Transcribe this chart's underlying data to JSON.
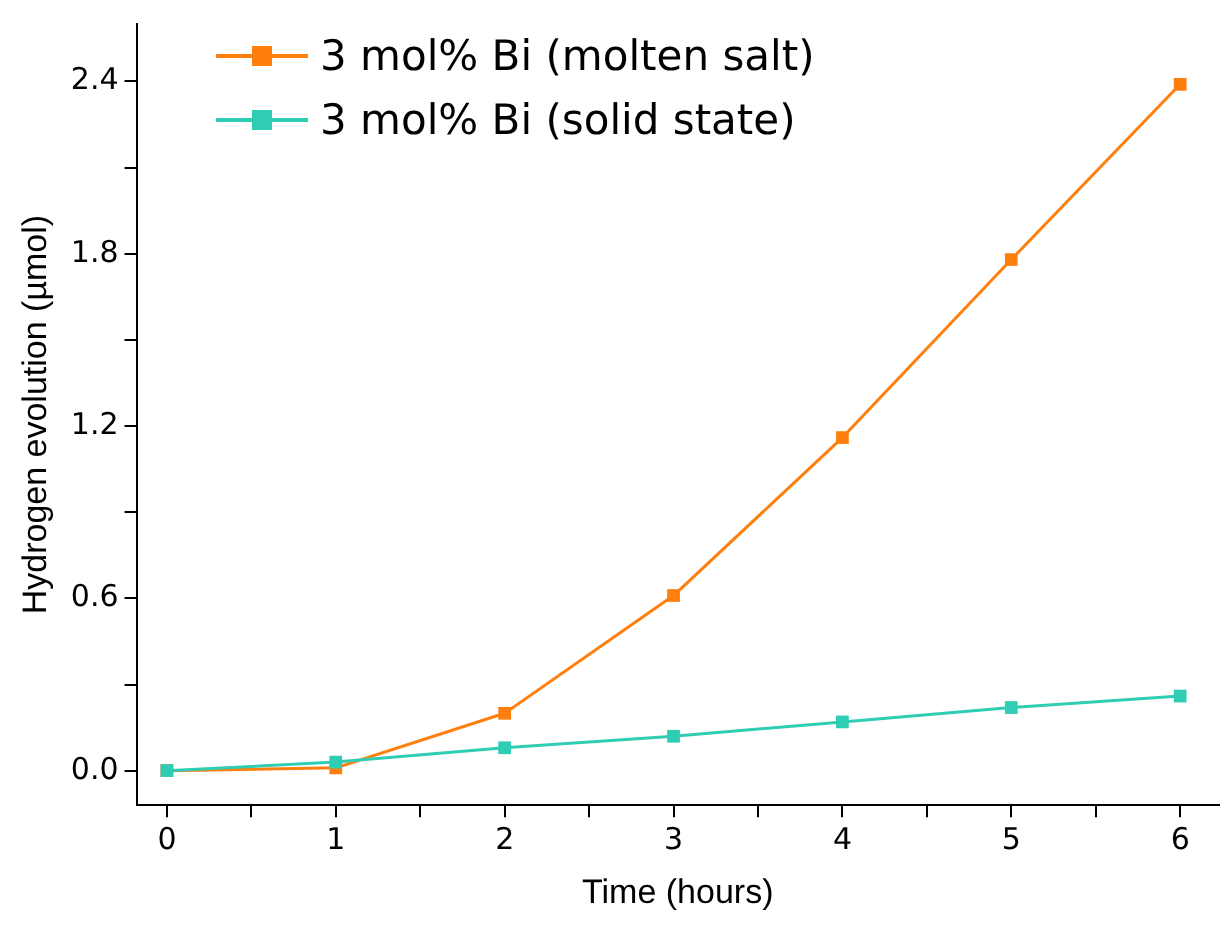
{
  "chart_data": {
    "type": "line",
    "xlabel": "Time (hours)",
    "ylabel": "Hydrogen evolution (µmol)",
    "x": [
      0,
      1,
      2,
      3,
      4,
      5,
      6
    ],
    "series": [
      {
        "name": "3 mol% Bi (molten salt)",
        "color": "#ff7f0e",
        "values": [
          0,
          0.01,
          0.2,
          0.61,
          1.16,
          1.78,
          2.39
        ]
      },
      {
        "name": "3 mol% Bi (solid state)",
        "color": "#2ecdb4",
        "values": [
          0,
          0.03,
          0.08,
          0.12,
          0.17,
          0.22,
          0.26
        ]
      }
    ],
    "xlim": [
      -0.18,
      6.23
    ],
    "ylim": [
      -0.12,
      2.6
    ],
    "xticks": [
      0,
      {
        "value": 0.5,
        "label": null
      },
      1,
      {
        "value": 1.5,
        "label": null
      },
      2,
      {
        "value": 2.5,
        "label": null
      },
      3,
      {
        "value": 3.5,
        "label": null
      },
      4,
      {
        "value": 4.5,
        "label": null
      },
      5,
      {
        "value": 5.5,
        "label": null
      },
      6
    ],
    "yticks": [
      {
        "value": 0,
        "label": "0.0"
      },
      {
        "value": 0.3,
        "label": null
      },
      0.6,
      {
        "value": 0.9,
        "label": null
      },
      1.2,
      {
        "value": 1.5,
        "label": null
      },
      1.8,
      {
        "value": 2.1,
        "label": null
      },
      2.4
    ],
    "grid": false,
    "legend": "top left",
    "marker": "square",
    "line_style": "solid"
  }
}
